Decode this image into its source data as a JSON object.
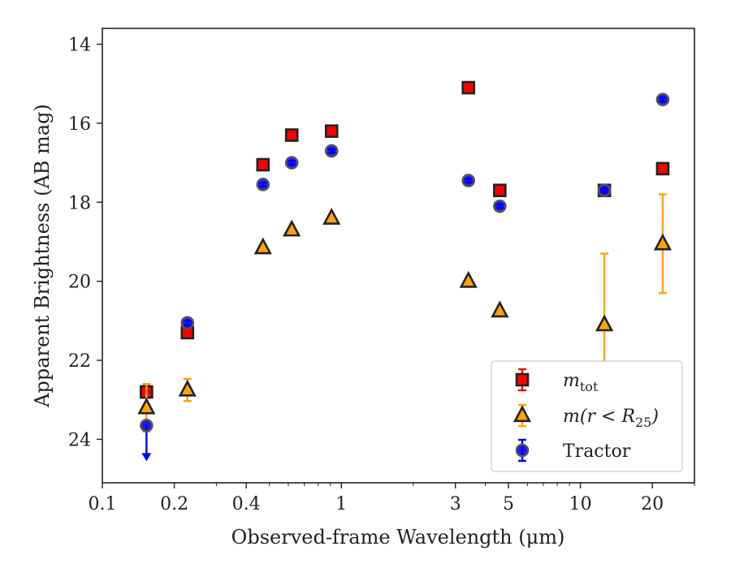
{
  "chart_data": {
    "type": "scatter",
    "xlabel": "Observed-frame Wavelength (μm)",
    "ylabel": "Apparent Brightness (AB mag)",
    "x_scale": "log",
    "xlim": [
      0.1,
      30
    ],
    "ylim": [
      25.1,
      13.6
    ],
    "y_inverted": true,
    "x_ticks": [
      {
        "value": 0.1,
        "label": "0.1"
      },
      {
        "value": 0.2,
        "label": "0.2"
      },
      {
        "value": 0.4,
        "label": "0.4"
      },
      {
        "value": 1,
        "label": "1"
      },
      {
        "value": 3,
        "label": "3"
      },
      {
        "value": 5,
        "label": "5"
      },
      {
        "value": 10,
        "label": "10"
      },
      {
        "value": 20,
        "label": "20"
      }
    ],
    "x_minor_ticks": [
      0.3,
      0.5,
      0.6,
      0.7,
      0.8,
      0.9,
      2,
      4,
      6,
      7,
      8,
      9,
      30
    ],
    "y_ticks": [
      {
        "value": 14,
        "label": "14"
      },
      {
        "value": 16,
        "label": "16"
      },
      {
        "value": 18,
        "label": "18"
      },
      {
        "value": 20,
        "label": "20"
      },
      {
        "value": 22,
        "label": "22"
      },
      {
        "value": 24,
        "label": "24"
      }
    ],
    "grid": false,
    "legend_position": "lower-right",
    "series": [
      {
        "name": "m_tot",
        "legend_main": "m",
        "legend_sub": "tot",
        "marker": "square",
        "color": "#ff0000",
        "edge_color": "#222222",
        "error_color": "#ff0000",
        "points": [
          {
            "x": 0.153,
            "y": 22.8,
            "err": 0.15
          },
          {
            "x": 0.227,
            "y": 21.3,
            "err": 0.1
          },
          {
            "x": 0.47,
            "y": 17.05,
            "err": 0.05
          },
          {
            "x": 0.62,
            "y": 16.3,
            "err": 0.05
          },
          {
            "x": 0.91,
            "y": 16.2,
            "err": 0.05
          },
          {
            "x": 3.4,
            "y": 15.1,
            "err": 0.05
          },
          {
            "x": 4.6,
            "y": 17.7,
            "err": 0.05
          },
          {
            "x": 12.6,
            "y": 17.7,
            "err": 0.05
          },
          {
            "x": 22.1,
            "y": 17.15,
            "err": 0.05
          }
        ]
      },
      {
        "name": "m(r < R_25)",
        "legend_main": "m(r < R",
        "legend_sub": "25",
        "legend_tail": ")",
        "marker": "triangle",
        "color": "#ffa500",
        "edge_color": "#222222",
        "error_color": "#ffa500",
        "points": [
          {
            "x": 0.153,
            "y": 23.2,
            "err": 0.6
          },
          {
            "x": 0.227,
            "y": 22.75,
            "err": 0.28
          },
          {
            "x": 0.47,
            "y": 19.15,
            "err": 0.05
          },
          {
            "x": 0.62,
            "y": 18.7,
            "err": 0.05
          },
          {
            "x": 0.91,
            "y": 18.4,
            "err": 0.05
          },
          {
            "x": 3.4,
            "y": 20.0,
            "err": 0.05
          },
          {
            "x": 4.6,
            "y": 20.75,
            "err": 0.05
          },
          {
            "x": 12.6,
            "y": 21.1,
            "err": 1.8
          },
          {
            "x": 22.1,
            "y": 19.05,
            "err": 1.25
          }
        ]
      },
      {
        "name": "Tractor",
        "legend_main": "Tractor",
        "marker": "circle",
        "color": "#0000ff",
        "edge_color": "#555555",
        "error_color": "#0000ff",
        "points": [
          {
            "x": 0.153,
            "y": 23.65,
            "err": 0.1,
            "upper_limit": true
          },
          {
            "x": 0.227,
            "y": 21.05,
            "err": 0.05
          },
          {
            "x": 0.47,
            "y": 17.55,
            "err": 0.05
          },
          {
            "x": 0.62,
            "y": 17.0,
            "err": 0.05
          },
          {
            "x": 0.91,
            "y": 16.7,
            "err": 0.05
          },
          {
            "x": 3.4,
            "y": 17.45,
            "err": 0.05
          },
          {
            "x": 4.6,
            "y": 18.1,
            "err": 0.05
          },
          {
            "x": 12.6,
            "y": 17.7,
            "err": 0.05
          },
          {
            "x": 22.1,
            "y": 15.4,
            "err": 0.05
          }
        ]
      }
    ]
  }
}
